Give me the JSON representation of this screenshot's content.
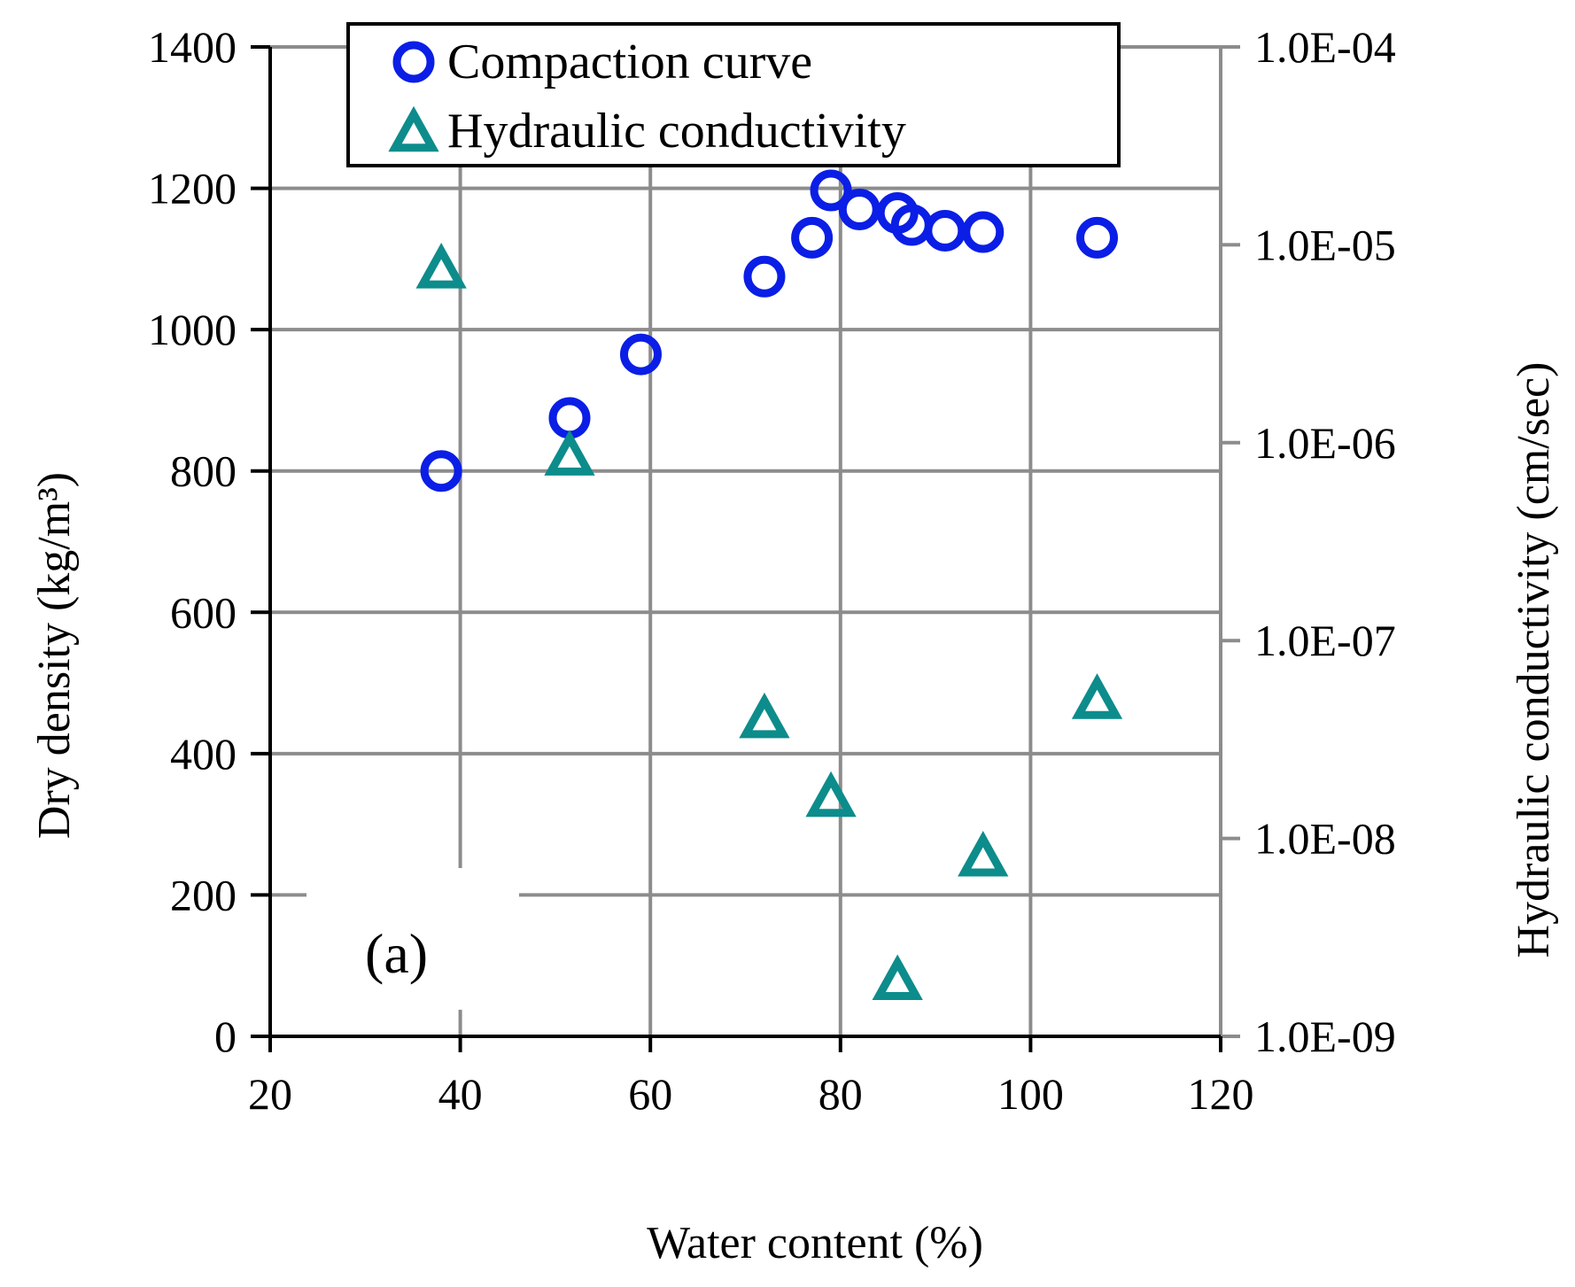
{
  "chart_data": {
    "type": "scatter",
    "title": "",
    "panel_label": "(a)",
    "xlabel": "Water content (%)",
    "ylabel_left": "Dry density (kg/m³)",
    "ylabel_right": "Hydraulic conductivity (cm/sec)",
    "xlim": [
      20,
      120
    ],
    "ylim_left": [
      0,
      1400
    ],
    "ylim_right_log10": [
      -9,
      -4
    ],
    "x_ticks": [
      "20",
      "40",
      "60",
      "80",
      "100",
      "120"
    ],
    "x_tick_values": [
      20,
      40,
      60,
      80,
      100,
      120
    ],
    "y_left_ticks": [
      "0",
      "200",
      "400",
      "600",
      "800",
      "1000",
      "1200",
      "1400"
    ],
    "y_left_tick_values": [
      0,
      200,
      400,
      600,
      800,
      1000,
      1200,
      1400
    ],
    "y_right_ticks": [
      "1.0E-09",
      "1.0E-08",
      "1.0E-07",
      "1.0E-06",
      "1.0E-05",
      "1.0E-04"
    ],
    "y_right_tick_exponents": [
      -9,
      -8,
      -7,
      -6,
      -5,
      -4
    ],
    "grid": true,
    "legend_position": "top",
    "series": [
      {
        "name": "Compaction curve",
        "axis": "left",
        "marker": "circle",
        "color": "#0a1ee6",
        "x": [
          38,
          51.5,
          59,
          72,
          77,
          79,
          82,
          86,
          87.5,
          91,
          95,
          107
        ],
        "y": [
          800,
          875,
          965,
          1075,
          1130,
          1197,
          1170,
          1165,
          1148,
          1140,
          1138,
          1130
        ]
      },
      {
        "name": "Hydraulic conductivity",
        "axis": "right",
        "marker": "triangle",
        "color": "#0d8c8c",
        "x": [
          38,
          51.5,
          72,
          79,
          86,
          95,
          107
        ],
        "y": [
          7.5e-06,
          8.5e-07,
          4e-08,
          1.6e-08,
          1.9e-09,
          8e-09,
          5e-08
        ]
      }
    ]
  }
}
